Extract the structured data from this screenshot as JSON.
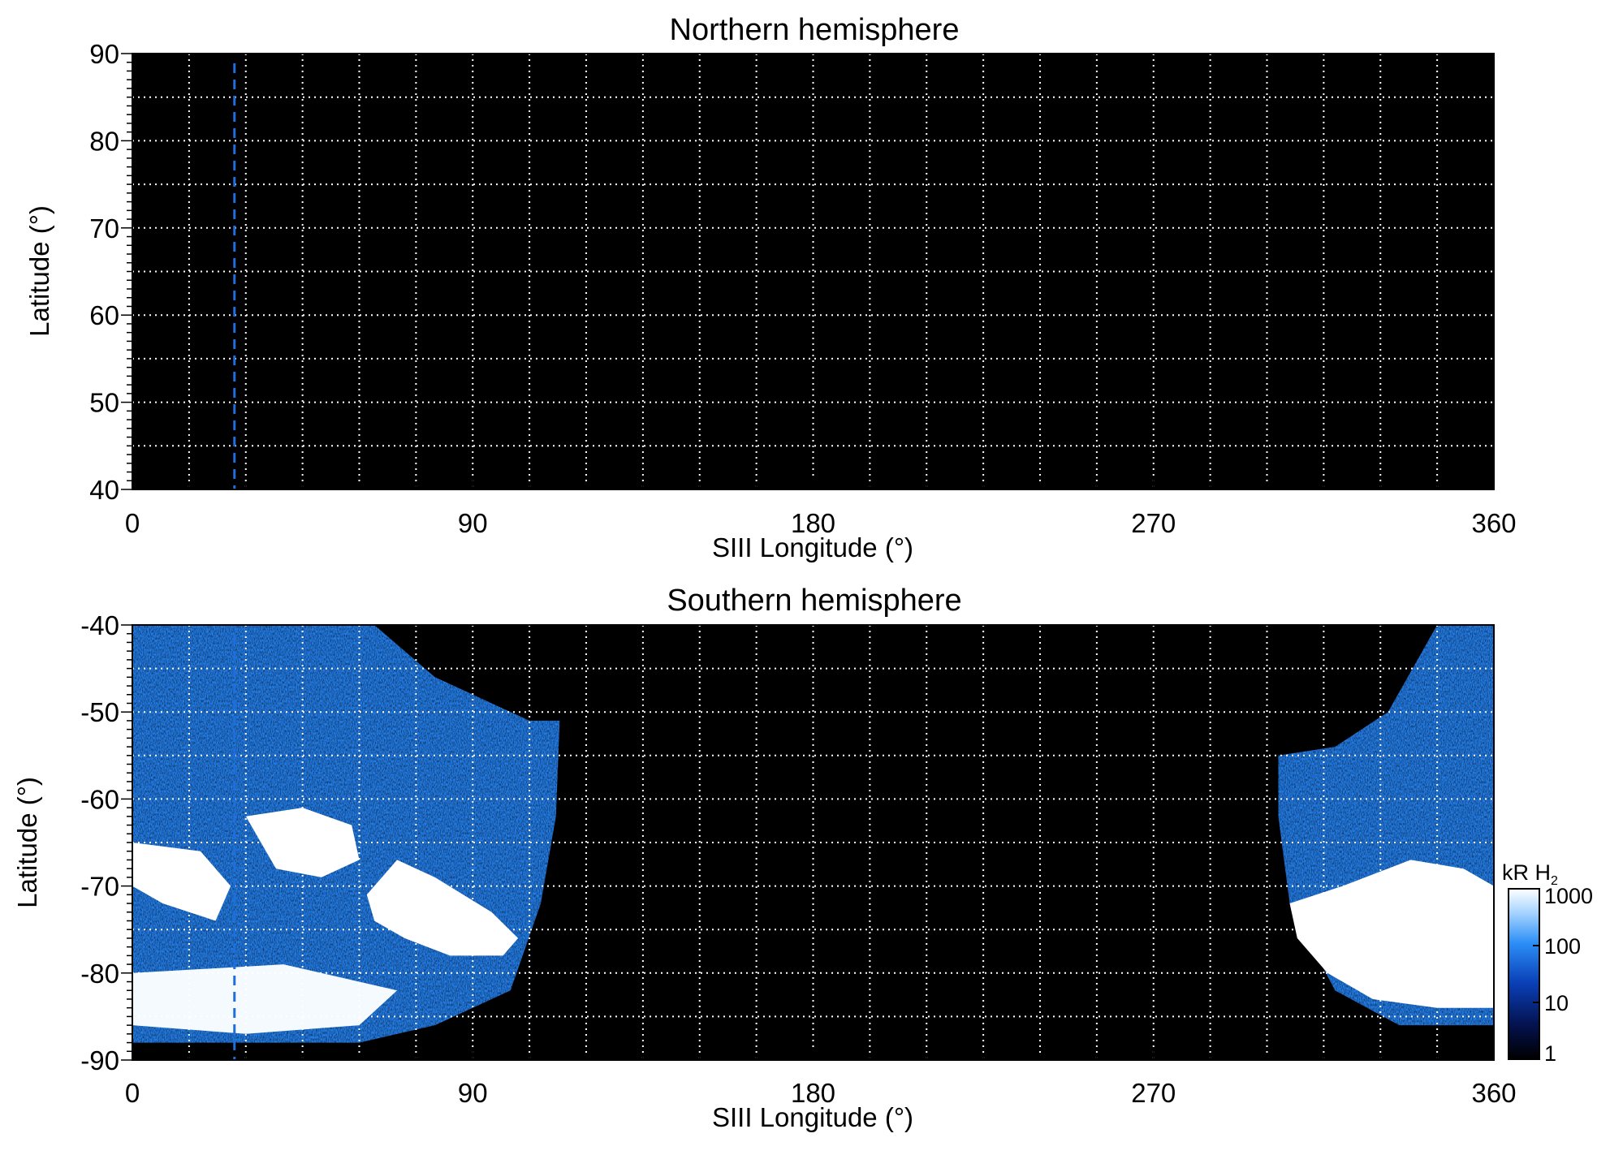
{
  "chart_data": [
    {
      "type": "heatmap",
      "title": "Northern hemisphere",
      "xlabel": "SIII Longitude (°)",
      "ylabel": "Latitude (°)",
      "xlim": [
        0,
        360
      ],
      "ylim": [
        40,
        90
      ],
      "x_ticks": [
        "0",
        "90",
        "180",
        "270",
        "360"
      ],
      "y_ticks": [
        "40",
        "50",
        "60",
        "70",
        "80",
        "90"
      ],
      "x_tick_values": [
        0,
        90,
        180,
        270,
        360
      ],
      "y_tick_values": [
        40,
        50,
        60,
        70,
        80,
        90
      ],
      "grid": true,
      "grid_x_step": 15,
      "grid_y_step": 5,
      "background": "#000000",
      "reference_line_longitude": 27,
      "reference_line_color": "#1e6fd9",
      "emission_regions": []
    },
    {
      "type": "heatmap",
      "title": "Southern hemisphere",
      "xlabel": "SIII Longitude (°)",
      "ylabel": "Latitude (°)",
      "xlim": [
        0,
        360
      ],
      "ylim": [
        -90,
        -40
      ],
      "x_ticks": [
        "0",
        "90",
        "180",
        "270",
        "360"
      ],
      "y_ticks": [
        "-40",
        "-50",
        "-60",
        "-70",
        "-80",
        "-90"
      ],
      "x_tick_values": [
        0,
        90,
        180,
        270,
        360
      ],
      "y_tick_values": [
        -40,
        -50,
        -60,
        -70,
        -80,
        -90
      ],
      "grid": true,
      "grid_x_step": 15,
      "grid_y_step": 5,
      "background": "#000000",
      "reference_line_longitude": 27,
      "reference_line_color": "#1e6fd9",
      "emission_regions": [
        {
          "name": "west-lobe",
          "boundary": [
            [
              0,
              -40
            ],
            [
              64,
              -40
            ],
            [
              80,
              -46
            ],
            [
              105,
              -51
            ],
            [
              113,
              -51
            ],
            [
              112,
              -62
            ],
            [
              108,
              -72
            ],
            [
              100,
              -82
            ],
            [
              80,
              -86
            ],
            [
              60,
              -88
            ],
            [
              30,
              -88
            ],
            [
              0,
              -88
            ]
          ],
          "intensity_kR": 80
        },
        {
          "name": "east-lobe",
          "boundary": [
            [
              360,
              -40
            ],
            [
              345,
              -40
            ],
            [
              332,
              -50
            ],
            [
              318,
              -54
            ],
            [
              303,
              -55
            ],
            [
              303,
              -62
            ],
            [
              306,
              -72
            ],
            [
              318,
              -82
            ],
            [
              335,
              -86
            ],
            [
              360,
              -86
            ]
          ],
          "intensity_kR": 80
        },
        {
          "name": "west-oval",
          "boundary": [
            [
              62,
              -71
            ],
            [
              70,
              -67
            ],
            [
              80,
              -69
            ],
            [
              95,
              -73
            ],
            [
              102,
              -76
            ],
            [
              98,
              -78
            ],
            [
              84,
              -78
            ],
            [
              72,
              -76
            ],
            [
              64,
              -74
            ]
          ],
          "intensity_kR": 1500
        },
        {
          "name": "west-spots-1",
          "boundary": [
            [
              0,
              -65
            ],
            [
              18,
              -66
            ],
            [
              26,
              -70
            ],
            [
              22,
              -74
            ],
            [
              8,
              -72
            ],
            [
              0,
              -70
            ]
          ],
          "intensity_kR": 1200
        },
        {
          "name": "west-spots-2",
          "boundary": [
            [
              30,
              -62
            ],
            [
              45,
              -61
            ],
            [
              58,
              -63
            ],
            [
              60,
              -67
            ],
            [
              50,
              -69
            ],
            [
              38,
              -68
            ]
          ],
          "intensity_kR": 1000
        },
        {
          "name": "west-polar-band",
          "boundary": [
            [
              0,
              -80
            ],
            [
              40,
              -79
            ],
            [
              70,
              -82
            ],
            [
              60,
              -86
            ],
            [
              30,
              -87
            ],
            [
              0,
              -86
            ]
          ],
          "intensity_kR": 900
        },
        {
          "name": "east-oval",
          "boundary": [
            [
              306,
              -72
            ],
            [
              320,
              -70
            ],
            [
              338,
              -67
            ],
            [
              352,
              -68
            ],
            [
              360,
              -70
            ],
            [
              360,
              -84
            ],
            [
              345,
              -84
            ],
            [
              328,
              -83
            ],
            [
              316,
              -80
            ],
            [
              308,
              -76
            ]
          ],
          "intensity_kR": 1500
        }
      ]
    }
  ],
  "colorbar": {
    "label": "kR H",
    "label_subscript": "2",
    "ticks": [
      "1000",
      "100",
      "10",
      "1"
    ],
    "tick_values": [
      1000,
      100,
      10,
      1
    ],
    "scale": "log",
    "range": [
      1,
      1000
    ],
    "colors": [
      "#000000",
      "#04124e",
      "#0a40b8",
      "#2b8ef6",
      "#a6d4ff",
      "#ffffff"
    ]
  },
  "colors": {
    "grid": "#ffffff",
    "frame": "#000000"
  }
}
